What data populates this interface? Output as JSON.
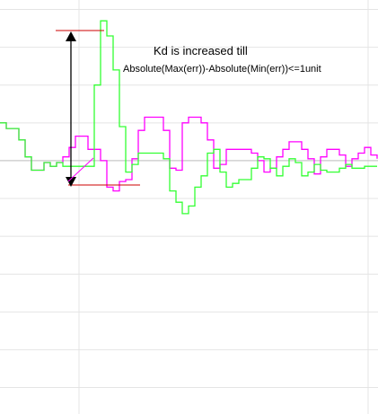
{
  "annotation": {
    "line1": "Kd is increased till",
    "line2": "Absolute(Max(err))-Absolute(Min(err))<=1unit"
  },
  "chart_data": {
    "type": "line",
    "title": "",
    "xlabel": "",
    "ylabel": "",
    "grid": true,
    "xlim": [
      0,
      421
    ],
    "ylim": [
      -6.7,
      4.25
    ],
    "series": [
      {
        "color": "#ff00ff",
        "interpolation": "step",
        "x": [
          0,
          7,
          14,
          21,
          28,
          35,
          42,
          49,
          56,
          63,
          70,
          77,
          84,
          91,
          98,
          105,
          112,
          119,
          126,
          133,
          140,
          147,
          154,
          161,
          168,
          175,
          182,
          189,
          196,
          203,
          210,
          217,
          224,
          231,
          238,
          245,
          252,
          259,
          266,
          273,
          280,
          287,
          294,
          301,
          308,
          315,
          322,
          329,
          336,
          343,
          350,
          357,
          364,
          371,
          378,
          385,
          392,
          399,
          406,
          413,
          420
        ],
        "y": [
          1.0,
          0.85,
          0.85,
          0.55,
          0.1,
          -0.25,
          -0.25,
          -0.05,
          -0.15,
          -0.05,
          0.1,
          0.35,
          0.65,
          0.65,
          0.3,
          0.3,
          0.0,
          -0.7,
          -0.8,
          -0.55,
          -0.5,
          0.05,
          0.8,
          1.15,
          1.15,
          1.15,
          0.8,
          -0.2,
          -0.25,
          1.0,
          1.15,
          1.15,
          1.0,
          0.55,
          -0.2,
          -0.1,
          0.3,
          0.3,
          0.3,
          0.3,
          0.2,
          0.0,
          -0.3,
          -0.2,
          0.1,
          0.3,
          0.5,
          0.5,
          0.3,
          0.05,
          -0.35,
          0.1,
          0.3,
          0.3,
          0.15,
          -0.15,
          0.05,
          0.2,
          0.35,
          0.15,
          0.05
        ]
      },
      {
        "color": "#33ff33",
        "interpolation": "step",
        "x": [
          0,
          7,
          14,
          21,
          28,
          35,
          42,
          49,
          56,
          63,
          70,
          77,
          84,
          91,
          98,
          105,
          112,
          119,
          126,
          133,
          140,
          147,
          154,
          161,
          168,
          175,
          182,
          189,
          196,
          203,
          210,
          217,
          224,
          231,
          238,
          245,
          252,
          259,
          266,
          273,
          280,
          287,
          294,
          301,
          308,
          315,
          322,
          329,
          336,
          343,
          350,
          357,
          364,
          371,
          378,
          385,
          392,
          399,
          406,
          413,
          420
        ],
        "y": [
          1.0,
          0.85,
          0.85,
          0.55,
          0.1,
          -0.25,
          -0.25,
          -0.05,
          -0.15,
          -0.05,
          -0.15,
          -0.15,
          -0.15,
          -0.15,
          -0.15,
          2.0,
          3.7,
          3.3,
          2.4,
          0.9,
          -0.3,
          -0.1,
          0.2,
          0.2,
          0.2,
          0.2,
          0.05,
          -0.8,
          -1.1,
          -1.4,
          -1.2,
          -0.7,
          -0.4,
          0.2,
          0.3,
          -0.3,
          -0.7,
          -0.6,
          -0.5,
          -0.5,
          -0.2,
          0.1,
          0.05,
          -0.2,
          -0.4,
          -0.15,
          0.05,
          -0.05,
          -0.4,
          -0.3,
          -0.1,
          -0.25,
          -0.3,
          -0.3,
          -0.2,
          -0.1,
          -0.2,
          -0.2,
          -0.15,
          -0.15,
          -0.15
        ]
      }
    ]
  }
}
